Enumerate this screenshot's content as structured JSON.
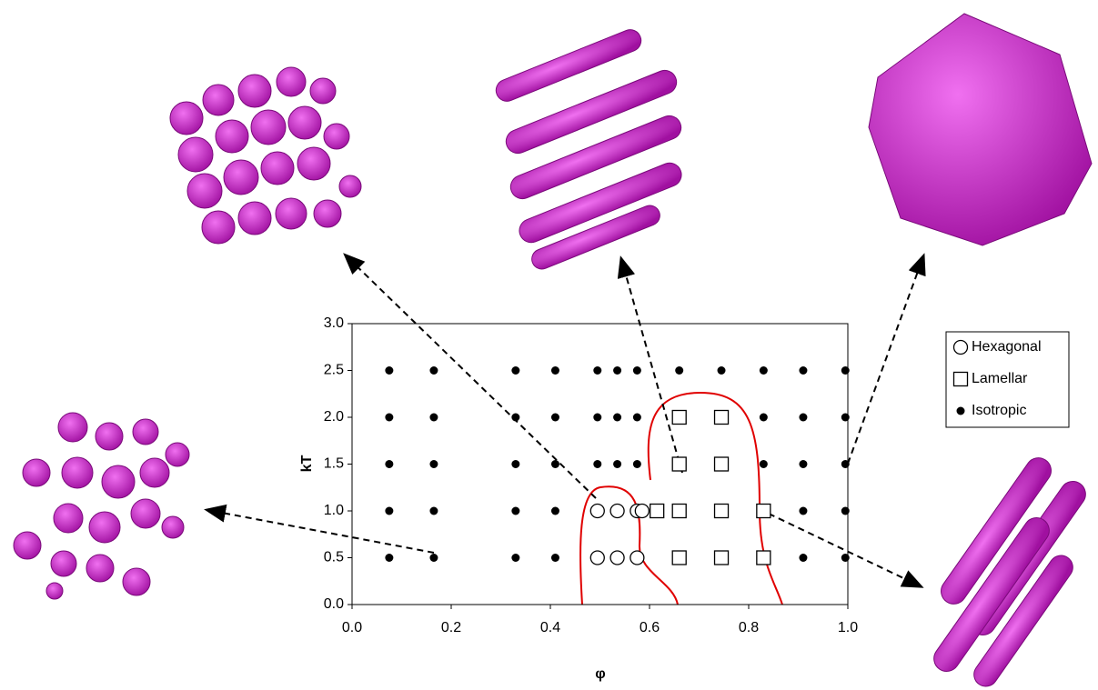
{
  "chart_data": {
    "type": "scatter",
    "x_label": "φ",
    "y_label": "kT",
    "xlim": [
      0,
      1
    ],
    "ylim": [
      0,
      3
    ],
    "xticks": [
      {
        "value": 0,
        "label": "0.0"
      },
      {
        "value": 0.2,
        "label": "0.2"
      },
      {
        "value": 0.4,
        "label": "0.4"
      },
      {
        "value": 0.6,
        "label": "0.6"
      },
      {
        "value": 0.8,
        "label": "0.8"
      },
      {
        "value": 1,
        "label": "1.0"
      }
    ],
    "yticks": [
      {
        "value": 0,
        "label": "0.0"
      },
      {
        "value": 0.5,
        "label": "0.5"
      },
      {
        "value": 1,
        "label": "1.0"
      },
      {
        "value": 1.5,
        "label": "1.5"
      },
      {
        "value": 2,
        "label": "2.0"
      },
      {
        "value": 2.5,
        "label": "2.5"
      },
      {
        "value": 3,
        "label": "3.0"
      }
    ],
    "legend": "right",
    "series": [
      {
        "name": "Hexagonal",
        "marker": "circle-open",
        "color": "#000000",
        "x": [
          0.495,
          0.535,
          0.575,
          0.585,
          0.495,
          0.535,
          0.575
        ],
        "values": [
          1,
          1,
          1,
          1,
          0.5,
          0.5,
          0.5
        ]
      },
      {
        "name": "Lamellar",
        "marker": "square-open",
        "color": "#000000",
        "x": [
          0.615,
          0.66,
          0.745,
          0.83,
          0.66,
          0.745,
          0.83,
          0.66,
          0.745,
          0.66,
          0.745
        ],
        "values": [
          1,
          1,
          1,
          1,
          0.5,
          0.5,
          0.5,
          1.5,
          1.5,
          2,
          2
        ]
      },
      {
        "name": "Isotropic",
        "marker": "dot",
        "color": "#000000",
        "x": [
          0.075,
          0.165,
          0.33,
          0.41,
          0.495,
          0.535,
          0.575,
          0.66,
          0.745,
          0.83,
          0.91,
          0.995,
          0.075,
          0.165,
          0.33,
          0.41,
          0.495,
          0.535,
          0.575,
          0.83,
          0.91,
          0.995,
          0.075,
          0.165,
          0.33,
          0.41,
          0.495,
          0.535,
          0.575,
          0.83,
          0.91,
          0.995,
          0.075,
          0.165,
          0.33,
          0.41,
          0.91,
          0.995,
          0.075,
          0.165,
          0.33,
          0.41,
          0.91,
          0.995
        ],
        "values": [
          2.5,
          2.5,
          2.5,
          2.5,
          2.5,
          2.5,
          2.5,
          2.5,
          2.5,
          2.5,
          2.5,
          2.5,
          2,
          2,
          2,
          2,
          2,
          2,
          2,
          2,
          2,
          2,
          1.5,
          1.5,
          1.5,
          1.5,
          1.5,
          1.5,
          1.5,
          1.5,
          1.5,
          1.5,
          1,
          1,
          1,
          1,
          1,
          1,
          0.5,
          0.5,
          0.5,
          0.5,
          0.5,
          0.5
        ]
      }
    ]
  }
}
